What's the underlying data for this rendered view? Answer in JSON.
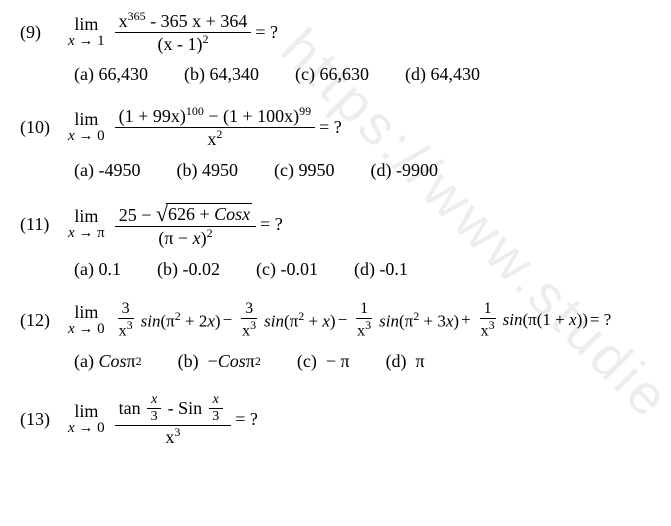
{
  "watermark": "https://www.studie",
  "problems": [
    {
      "num": "(9)",
      "eq": "= ?",
      "lim_top": "lim",
      "lim_bot_var": "x",
      "lim_bot_arrow": "→",
      "lim_bot_val": "1",
      "numerator": "x<sup class='sup'>365</sup> - 365 x + 364",
      "denominator": "(x - 1)<sup class='sup'>2</sup>",
      "opts": [
        "(a) 66,430",
        "(b) 64,340",
        "(c) 66,630",
        "(d) 64,430"
      ]
    },
    {
      "num": "(10)",
      "eq": "= ?",
      "lim_top": "lim",
      "lim_bot_var": "x",
      "lim_bot_arrow": "→",
      "lim_bot_val": "0",
      "numerator": "(1 + 99x)<sup class='sup'>100</sup> − (1 + 100x)<sup class='sup'>99</sup>",
      "denominator": "x<sup class='sup'>2</sup>",
      "opts": [
        "(a) -4950",
        "(b) 4950",
        "(c) 9950",
        "(d) -9900"
      ]
    },
    {
      "num": "(11)",
      "eq": "= ?",
      "lim_top": "lim",
      "lim_bot_var": "x",
      "lim_bot_arrow": "→",
      "lim_bot_val": "π",
      "sqrt_lead": "25 −",
      "sqrt_arg": "626 + <span class='it'>Cosx</span>",
      "denominator": "(π − <span class='it'>x</span>)<sup class='sup'>2</sup>",
      "opts": [
        "(a) 0.1",
        "(b) -0.02",
        "(c) -0.01",
        "(d) -0.1"
      ]
    },
    {
      "num": "(12)",
      "eq": "= ?",
      "lim_top": "lim",
      "lim_bot_var": "x",
      "lim_bot_arrow": "→",
      "lim_bot_val": "0",
      "terms": [
        {
          "sign": "",
          "fn": "3",
          "fd": "x<sup class='sup'>3</sup>",
          "trig": "<span class='it'>sin</span>(π<sup class='sup'>2</sup> + 2<span class='it'>x</span>)"
        },
        {
          "sign": "−",
          "fn": "3",
          "fd": "x<sup class='sup'>3</sup>",
          "trig": "<span class='it'>sin</span>(π<sup class='sup'>2</sup> + <span class='it'>x</span>)"
        },
        {
          "sign": "−",
          "fn": "1",
          "fd": "x<sup class='sup'>3</sup>",
          "trig": "<span class='it'>sin</span>(π<sup class='sup'>2</sup> + 3<span class='it'>x</span>)"
        },
        {
          "sign": "+",
          "fn": "1",
          "fd": "x<sup class='sup'>3</sup>",
          "trig": "<span class='it'>sin</span>(π(1 + <span class='it'>x</span>))"
        }
      ],
      "opts_html": [
        "(a)&nbsp; <span class='it'>Cos</span>π<sup class='sup'>2</sup>",
        "(b)&nbsp; − <span class='it'>Cos</span>π<sup class='sup'>2</sup>",
        "(c)&nbsp; − π",
        "(d)&nbsp; π"
      ]
    },
    {
      "num": "(13)",
      "eq": "= ?",
      "lim_top": "lim",
      "lim_bot_var": "x",
      "lim_bot_arrow": "→",
      "lim_bot_val": "0",
      "num_parts": {
        "a": "tan",
        "fn1_n": "x",
        "fn1_d": "3",
        "mid": " - Sin",
        "fn2_n": "x",
        "fn2_d": "3"
      },
      "denominator": "x<sup class='sup'>3</sup>"
    }
  ]
}
